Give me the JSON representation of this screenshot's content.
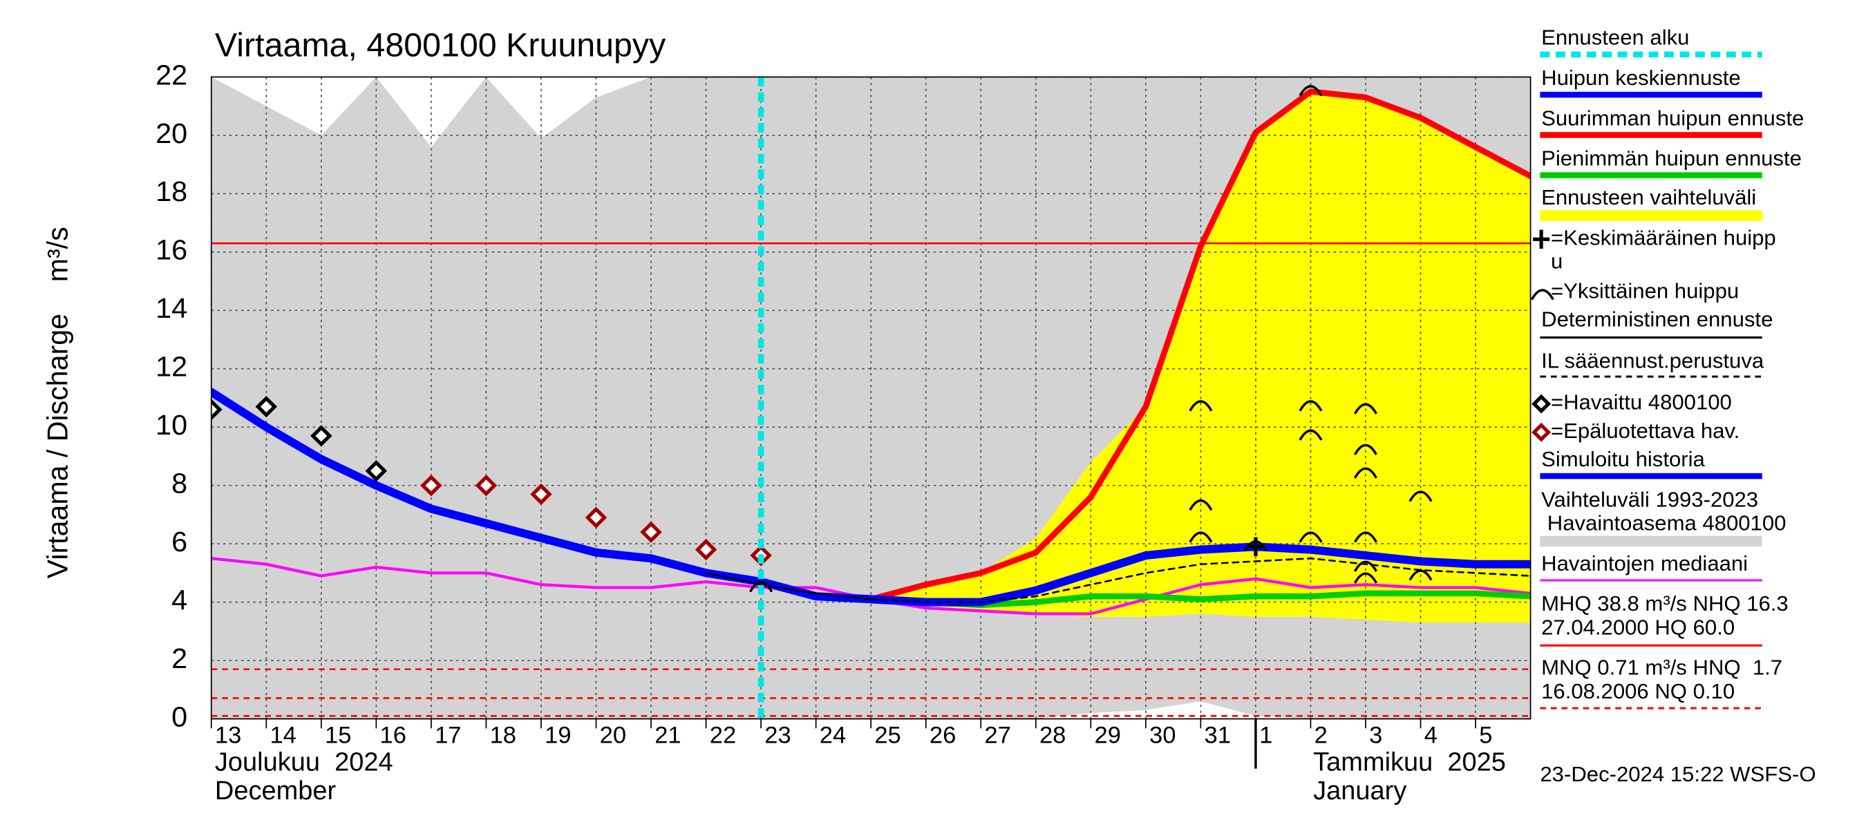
{
  "chart_data": {
    "type": "line",
    "title": "Virtaama, 4800100 Kruunupyy",
    "y_label": "Virtaama / Discharge    m³/s",
    "timestamp": "23-Dec-2024 15:22 WSFS-O",
    "month_labels": [
      [
        "Joulukuu  2024",
        "December"
      ],
      [
        "Tammikuu  2025",
        "January"
      ]
    ],
    "ylim": [
      0,
      22
    ],
    "yticks": [
      0,
      2,
      4,
      6,
      8,
      10,
      12,
      14,
      16,
      18,
      20,
      22
    ],
    "xlim": [
      "2024-12-13",
      "2025-01-06"
    ],
    "xticks": [
      {
        "value": "2024-12-13",
        "label": "13"
      },
      {
        "value": "2024-12-14",
        "label": "14"
      },
      {
        "value": "2024-12-15",
        "label": "15"
      },
      {
        "value": "2024-12-16",
        "label": "16"
      },
      {
        "value": "2024-12-17",
        "label": "17"
      },
      {
        "value": "2024-12-18",
        "label": "18"
      },
      {
        "value": "2024-12-19",
        "label": "19"
      },
      {
        "value": "2024-12-20",
        "label": "20"
      },
      {
        "value": "2024-12-21",
        "label": "21"
      },
      {
        "value": "2024-12-22",
        "label": "22"
      },
      {
        "value": "2024-12-23",
        "label": "23"
      },
      {
        "value": "2024-12-24",
        "label": "24"
      },
      {
        "value": "2024-12-25",
        "label": "25"
      },
      {
        "value": "2024-12-26",
        "label": "26"
      },
      {
        "value": "2024-12-27",
        "label": "27"
      },
      {
        "value": "2024-12-28",
        "label": "28"
      },
      {
        "value": "2024-12-29",
        "label": "29"
      },
      {
        "value": "2024-12-30",
        "label": "30"
      },
      {
        "value": "2024-12-31",
        "label": "31"
      },
      {
        "value": "2025-01-01",
        "label": "1"
      },
      {
        "value": "2025-01-02",
        "label": "2"
      },
      {
        "value": "2025-01-03",
        "label": "3"
      },
      {
        "value": "2025-01-04",
        "label": "4"
      },
      {
        "value": "2025-01-05",
        "label": "5"
      }
    ],
    "grid": true,
    "forecast_start": "2024-12-23",
    "x": [
      "2024-12-13",
      "2024-12-14",
      "2024-12-15",
      "2024-12-16",
      "2024-12-17",
      "2024-12-18",
      "2024-12-19",
      "2024-12-20",
      "2024-12-21",
      "2024-12-22",
      "2024-12-23",
      "2024-12-24",
      "2024-12-25",
      "2024-12-26",
      "2024-12-27",
      "2024-12-28",
      "2024-12-29",
      "2024-12-30",
      "2024-12-31",
      "2025-01-01",
      "2025-01-02",
      "2025-01-03",
      "2025-01-04",
      "2025-01-05",
      "2025-01-06"
    ],
    "bands": [
      {
        "color": "#d3d3d3",
        "upper": [
          22,
          21,
          20,
          22,
          19.6,
          22,
          19.9,
          21.3,
          22,
          22,
          22,
          22,
          22,
          22,
          22,
          22,
          22,
          22,
          22,
          22,
          22,
          22,
          22,
          22,
          22
        ],
        "lower": [
          0,
          0,
          0,
          0,
          0,
          0,
          0,
          0,
          0,
          0,
          0,
          0,
          0,
          0,
          0,
          0,
          0.2,
          0.3,
          0.6,
          0.1,
          0,
          0,
          0,
          0,
          0
        ]
      },
      {
        "color": "#ffff00",
        "upper": [
          null,
          null,
          null,
          null,
          null,
          null,
          null,
          null,
          null,
          null,
          null,
          null,
          4.2,
          4.6,
          5.0,
          6.2,
          8.8,
          10.7,
          16.2,
          20.1,
          21.5,
          21.3,
          20.6,
          19.6,
          18.6
        ],
        "lower": [
          null,
          null,
          null,
          null,
          null,
          null,
          null,
          null,
          null,
          null,
          null,
          null,
          4.1,
          3.9,
          3.7,
          3.6,
          3.5,
          3.5,
          3.6,
          3.5,
          3.5,
          3.4,
          3.3,
          3.3,
          3.3
        ]
      }
    ],
    "reference_lines": [
      {
        "value": 16.3,
        "color": "#ff0000",
        "style": "solid"
      },
      {
        "value": 1.7,
        "color": "#ff0000",
        "style": "dashed"
      },
      {
        "value": 0.71,
        "color": "#ff0000",
        "style": "dashed"
      },
      {
        "value": 0.1,
        "color": "#ff0000",
        "style": "dashed"
      }
    ],
    "series": [
      {
        "color": "#ff00ff",
        "style": "thin",
        "values": [
          5.5,
          5.3,
          4.9,
          5.2,
          5.0,
          5.0,
          4.6,
          4.5,
          4.5,
          4.7,
          4.5,
          4.5,
          4.1,
          3.8,
          3.7,
          3.6,
          3.6,
          4.1,
          4.6,
          4.8,
          4.5,
          4.6,
          4.5,
          4.5,
          4.3
        ]
      },
      {
        "color": "#00cc00",
        "style": "medium",
        "values": [
          null,
          null,
          null,
          null,
          null,
          null,
          null,
          null,
          null,
          null,
          null,
          null,
          4.1,
          4.0,
          3.9,
          4.0,
          4.2,
          4.2,
          4.1,
          4.2,
          4.2,
          4.3,
          4.3,
          4.3,
          4.2
        ]
      },
      {
        "color": "#ff0000",
        "style": "medium",
        "values": [
          null,
          null,
          null,
          null,
          null,
          null,
          null,
          null,
          null,
          null,
          null,
          null,
          4.1,
          4.6,
          5.0,
          5.7,
          7.6,
          10.7,
          16.2,
          20.1,
          21.5,
          21.3,
          20.6,
          19.6,
          18.6
        ]
      },
      {
        "color": "#0000ff",
        "style": "thick",
        "values": [
          11.2,
          10.0,
          8.9,
          8.0,
          7.2,
          6.7,
          6.2,
          5.7,
          5.5,
          5.0,
          4.7,
          null,
          null,
          null,
          null,
          null,
          null,
          null,
          null,
          null,
          null,
          null,
          null,
          null,
          null
        ]
      },
      {
        "color": "#0000ff",
        "style": "thick",
        "values": [
          null,
          null,
          null,
          null,
          null,
          null,
          null,
          null,
          null,
          null,
          4.7,
          4.2,
          4.1,
          4.0,
          4.0,
          4.4,
          5.0,
          5.6,
          5.8,
          5.9,
          5.8,
          5.6,
          5.4,
          5.3,
          5.3
        ]
      },
      {
        "color": "#000000",
        "style": "hair",
        "values": [
          null,
          null,
          null,
          null,
          null,
          null,
          null,
          null,
          null,
          5.0,
          4.6,
          4.3,
          4.1,
          null,
          null,
          null,
          null,
          null,
          null,
          null,
          null,
          null,
          null,
          null,
          null
        ]
      },
      {
        "color": "#000000",
        "style": "hair-dashed",
        "values": [
          null,
          null,
          null,
          null,
          null,
          null,
          null,
          null,
          null,
          null,
          null,
          null,
          4.1,
          4.0,
          4.0,
          4.2,
          4.6,
          5.0,
          5.3,
          5.4,
          5.5,
          5.3,
          5.1,
          5.0,
          4.9
        ]
      },
      {
        "color": "#000000",
        "style": "diamond",
        "values": [
          10.6,
          10.7,
          9.7,
          8.5,
          null,
          null,
          null,
          null,
          null,
          null,
          null,
          null,
          null,
          null,
          null,
          null,
          null,
          null,
          null,
          null,
          null,
          null,
          null,
          null,
          null
        ]
      },
      {
        "color": "#a00000",
        "style": "diamond",
        "values": [
          null,
          null,
          null,
          null,
          8.0,
          8.0,
          7.7,
          6.9,
          6.4,
          5.8,
          5.6,
          null,
          null,
          null,
          null,
          null,
          null,
          null,
          null,
          null,
          null,
          null,
          null,
          null,
          null
        ]
      }
    ],
    "single_peaks": [
      {
        "x": "2025-01-02",
        "y": 21.6
      },
      {
        "x": "2024-12-31",
        "y": 10.8
      },
      {
        "x": "2024-12-31",
        "y": 7.4
      },
      {
        "x": "2024-12-31",
        "y": 6.3
      },
      {
        "x": "2025-01-02",
        "y": 10.8
      },
      {
        "x": "2025-01-02",
        "y": 9.8
      },
      {
        "x": "2025-01-02",
        "y": 6.3
      },
      {
        "x": "2025-01-03",
        "y": 10.7
      },
      {
        "x": "2025-01-03",
        "y": 9.3
      },
      {
        "x": "2025-01-03",
        "y": 8.5
      },
      {
        "x": "2025-01-03",
        "y": 6.3
      },
      {
        "x": "2025-01-03",
        "y": 5.3
      },
      {
        "x": "2025-01-03",
        "y": 4.9
      },
      {
        "x": "2025-01-04",
        "y": 7.7
      },
      {
        "x": "2025-01-04",
        "y": 5.0
      },
      {
        "x": "2025-01-01",
        "y": 6.0
      },
      {
        "x": "2024-12-23",
        "y": 4.6
      }
    ],
    "mean_peak": {
      "x": "2025-01-01",
      "y": 5.9
    },
    "legend": [
      {
        "lines": [
          "Ennusteen alku"
        ],
        "color": "#00e5e5",
        "swatch": "thick-dash"
      },
      {
        "lines": [
          "Huipun keskiennuste"
        ],
        "color": "#0000ff",
        "swatch": "thick-line"
      },
      {
        "lines": [
          "Suurimman huipun ennuste"
        ],
        "color": "#ff0000",
        "swatch": "thick-line"
      },
      {
        "lines": [
          "Pienimmän huipun ennuste"
        ],
        "color": "#00cc00",
        "swatch": "thick-line"
      },
      {
        "lines": [
          "Ennusteen vaihteluväli"
        ],
        "color": "#ffff00",
        "swatch": "band"
      },
      {
        "lines": [
          "=Keskimääräinen huipp",
          "u"
        ],
        "color": "#000000",
        "swatch": "plus"
      },
      {
        "lines": [
          "=Yksittäinen huippu"
        ],
        "color": "#000000",
        "swatch": "arc"
      },
      {
        "lines": [
          "Deterministinen ennuste"
        ],
        "color": "#000000",
        "swatch": "thin-line"
      },
      {
        "lines": [
          "IL sääennust.perustuva"
        ],
        "color": "#000000",
        "swatch": "thin-dash"
      },
      {
        "lines": [
          "=Havaittu 4800100"
        ],
        "color": "#000000",
        "swatch": "diamond"
      },
      {
        "lines": [
          "=Epäluotettava hav."
        ],
        "color": "#a00000",
        "swatch": "diamond"
      },
      {
        "lines": [
          "Simuloitu historia"
        ],
        "color": "#0000ff",
        "swatch": "thick-line"
      },
      {
        "lines": [
          "Vaihteluväli 1993-2023",
          " Havaintoasema 4800100"
        ],
        "color": "#d3d3d3",
        "swatch": "band"
      },
      {
        "lines": [
          "Havaintojen mediaani"
        ],
        "color": "#ff00ff",
        "swatch": "thin-line"
      },
      {
        "lines": [
          "MHQ 38.8 m³/s NHQ 16.3",
          "27.04.2000 HQ 60.0"
        ],
        "color": "#ff0000",
        "swatch": "thin-line"
      },
      {
        "lines": [
          "MNQ 0.71 m³/s HNQ  1.7",
          "16.08.2006 NQ 0.10"
        ],
        "color": "#ff0000",
        "swatch": "thin-dash"
      }
    ]
  }
}
